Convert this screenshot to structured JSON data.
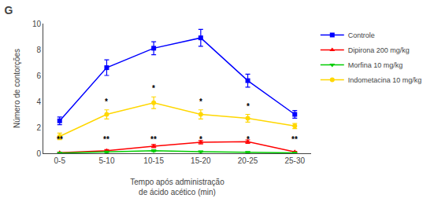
{
  "chart_data": {
    "type": "line",
    "title": "G",
    "xlabel": "Tempo após administração\nde ácido acético (min)",
    "ylabel": "Número de contorções",
    "categories": [
      "0-5",
      "5-10",
      "10-15",
      "15-20",
      "20-25",
      "25-30"
    ],
    "series": [
      {
        "name": "Controle",
        "color": "#0000FF",
        "marker": "square",
        "values": [
          2.5,
          6.6,
          8.1,
          8.9,
          5.6,
          3.0
        ],
        "yerr": [
          0.3,
          0.6,
          0.5,
          0.65,
          0.5,
          0.3
        ]
      },
      {
        "name": "Dipirona 200 mg/kg",
        "color": "#FF0000",
        "marker": "triangle-up",
        "values": [
          0.05,
          0.2,
          0.55,
          0.85,
          0.9,
          0.1
        ],
        "yerr": [
          0.04,
          0.08,
          0.12,
          0.13,
          0.13,
          0.04
        ]
      },
      {
        "name": "Morfina 10 mg/kg",
        "color": "#00CC00",
        "marker": "triangle-down",
        "values": [
          0.02,
          0.1,
          0.2,
          0.12,
          0.08,
          0.03
        ],
        "yerr": [
          0.02,
          0.05,
          0.07,
          0.04,
          0.04,
          0.02
        ]
      },
      {
        "name": "Indometacina 10 mg/kg",
        "color": "#FFD700",
        "marker": "circle",
        "values": [
          1.3,
          3.0,
          3.9,
          3.0,
          2.7,
          2.1
        ],
        "yerr": [
          0.25,
          0.35,
          0.45,
          0.35,
          0.3,
          0.2
        ]
      }
    ],
    "annotations": [
      {
        "text": "**",
        "x": "0-5",
        "y": 0.62
      },
      {
        "text": "**",
        "x": "5-10",
        "y": 0.62
      },
      {
        "text": "**",
        "x": "10-15",
        "y": 0.62
      },
      {
        "text": "*",
        "x": "15-20",
        "y": 0.62
      },
      {
        "text": "*",
        "x": "20-25",
        "y": 0.62
      },
      {
        "text": "**",
        "x": "25-30",
        "y": 0.62
      },
      {
        "text": "*",
        "x": "5-10",
        "y": 3.53
      },
      {
        "text": "*",
        "x": "10-15",
        "y": 4.53
      },
      {
        "text": "*",
        "x": "15-20",
        "y": 3.53
      },
      {
        "text": "*",
        "x": "20-25",
        "y": 3.18
      }
    ],
    "ylim": [
      0,
      10
    ],
    "yticks": [
      0,
      2,
      4,
      6,
      8,
      10
    ],
    "grid": false,
    "legend": "right"
  }
}
